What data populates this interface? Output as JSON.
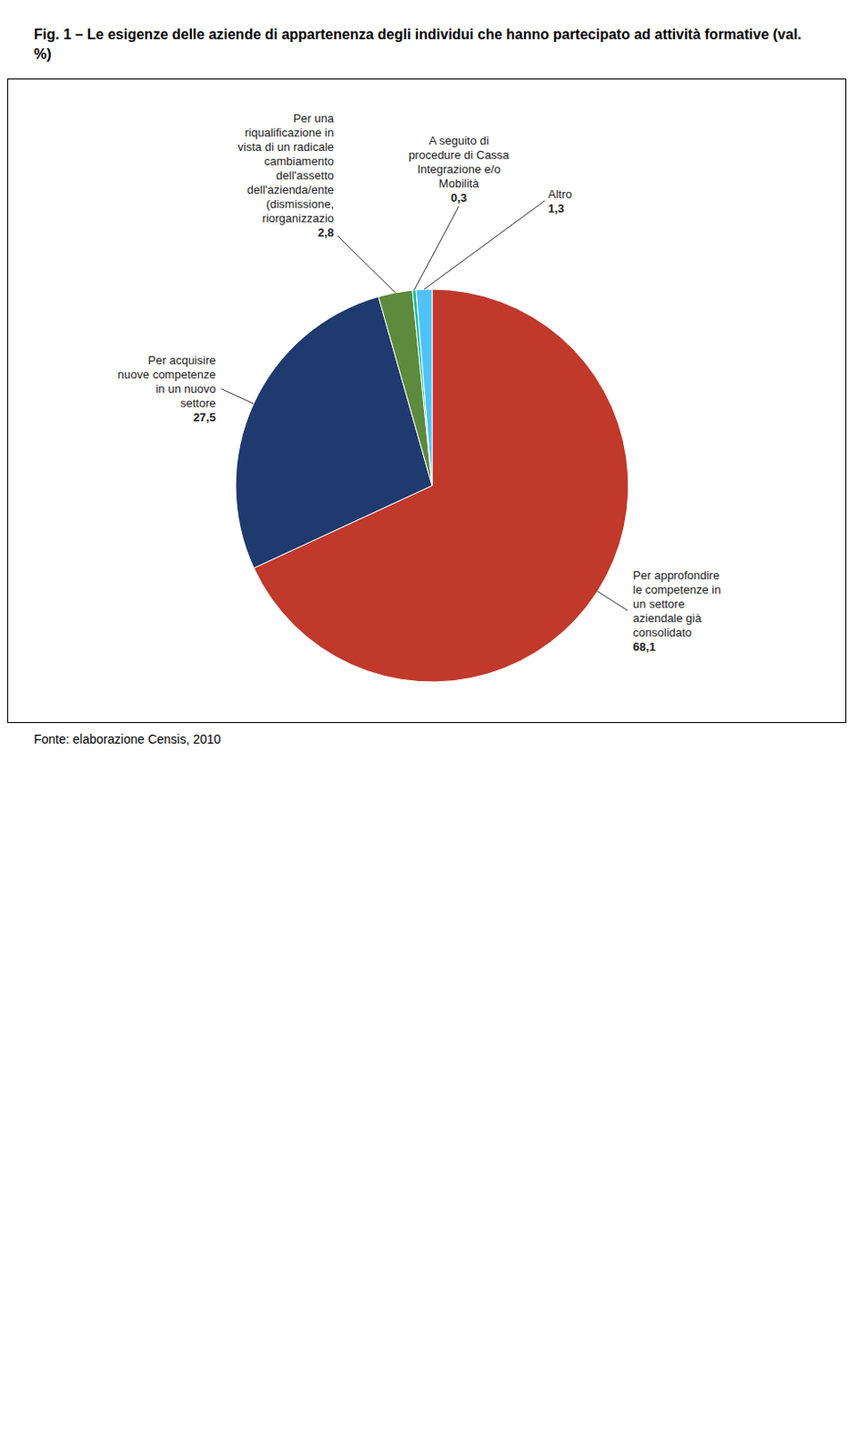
{
  "chart_data": {
    "type": "pie",
    "title": "Fig. 1 –  Le esigenze delle aziende di appartenenza degli individui che hanno partecipato ad attività formative (val. %)",
    "categories": [
      "Per approfondire\nle competenze in\nun settore\naziendale già\nconsolidato",
      "Per acquisire\nnuove competenze\nin un nuovo\nsettore",
      "Per una\nriqualificazione in\nvista di un radicale\ncambiamento\ndell'assetto\ndell'azienda/ente\n(dismissione,\nriorganizzazio",
      "A seguito di\nprocedure di Cassa\nIntegrazione e/o\nMobilità",
      "Altro"
    ],
    "values": [
      68.1,
      27.5,
      2.8,
      0.3,
      1.3
    ],
    "value_labels": [
      "68,1",
      "27,5",
      "2,8",
      "0,3",
      "1,3"
    ],
    "colors": [
      "#C0392B",
      "#1F3A6E",
      "#5D8A3C",
      "#1ABC9C",
      "#4FC3F7"
    ],
    "data_labels": true,
    "annotations": [
      "Fonte: elaborazione Censis, 2010"
    ]
  }
}
